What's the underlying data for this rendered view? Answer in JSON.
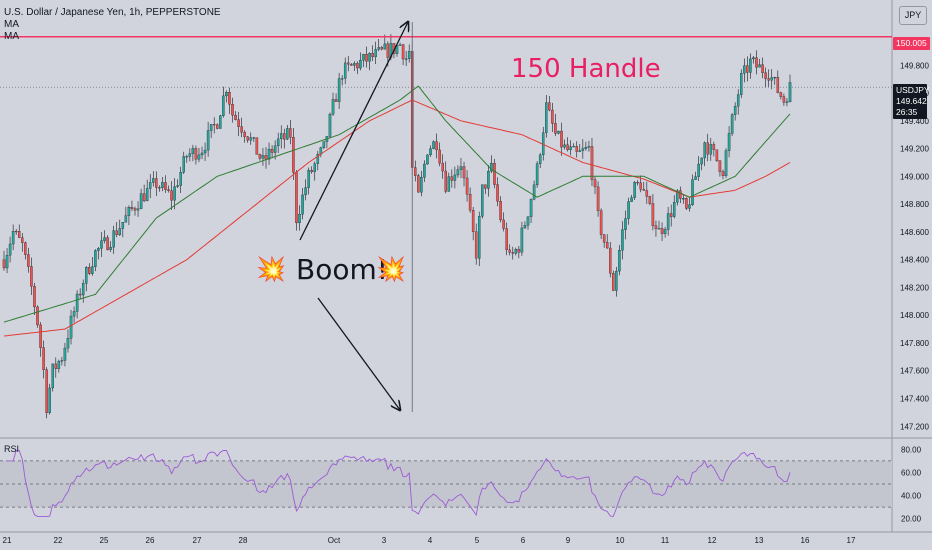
{
  "header": {
    "symbol_line": "U.S. Dollar / Japanese Yen, 1h, PEPPERSTONE",
    "ma1_label": "MA",
    "ma2_label": "MA",
    "currency_badge": "JPY"
  },
  "price_tags": {
    "handle_price": "150.005",
    "symbol": "USDJPY",
    "last_price": "149.642",
    "countdown": "26:35"
  },
  "annotations": {
    "handle_text": "150 Handle",
    "boom_text": "Boom!",
    "burst_glyph": "💥"
  },
  "rsi_pane": {
    "label": "RSI"
  },
  "colors": {
    "background": "#d1d4dc",
    "bull": "#26a69a",
    "bear": "#ef5350",
    "ma_fast": "#2e7d32",
    "ma_slow": "#e53935",
    "handle_line": "#f23660",
    "rsi_line": "#9c5bd6"
  },
  "chart_data": {
    "type": "candlestick",
    "symbol": "USDJPY",
    "timeframe": "1h",
    "y_axis_ticks": [
      147.2,
      147.4,
      147.6,
      147.8,
      148.0,
      148.2,
      148.4,
      148.6,
      148.8,
      149.0,
      149.2,
      149.4,
      149.6,
      149.8
    ],
    "ylim": [
      147.13,
      150.27
    ],
    "x_axis_ticks": [
      "21",
      "22",
      "25",
      "26",
      "27",
      "28",
      "Oct",
      "3",
      "4",
      "5",
      "6",
      "9",
      "10",
      "11",
      "12",
      "13",
      "16",
      "17"
    ],
    "price_path_keypoints": [
      [
        0,
        148.4
      ],
      [
        3,
        148.6
      ],
      [
        6,
        148.5
      ],
      [
        9,
        148.2
      ],
      [
        11,
        147.95
      ],
      [
        13,
        147.6
      ],
      [
        14,
        147.35
      ],
      [
        16,
        147.6
      ],
      [
        19,
        147.7
      ],
      [
        22,
        147.95
      ],
      [
        26,
        148.25
      ],
      [
        30,
        148.45
      ],
      [
        35,
        148.55
      ],
      [
        40,
        148.7
      ],
      [
        45,
        148.85
      ],
      [
        50,
        148.95
      ],
      [
        55,
        148.85
      ],
      [
        60,
        149.15
      ],
      [
        65,
        149.2
      ],
      [
        70,
        149.4
      ],
      [
        73,
        149.65
      ],
      [
        75,
        149.45
      ],
      [
        80,
        149.3
      ],
      [
        85,
        149.1
      ],
      [
        90,
        149.25
      ],
      [
        94,
        149.3
      ],
      [
        96,
        148.7
      ],
      [
        100,
        149.0
      ],
      [
        105,
        149.2
      ],
      [
        108,
        149.5
      ],
      [
        111,
        149.75
      ],
      [
        115,
        149.8
      ],
      [
        120,
        149.85
      ],
      [
        125,
        149.9
      ],
      [
        128,
        149.92
      ],
      [
        130,
        149.95
      ],
      [
        132,
        149.85
      ],
      [
        133,
        149.9
      ],
      [
        134,
        149.05
      ],
      [
        136,
        148.85
      ],
      [
        139,
        149.2
      ],
      [
        142,
        149.25
      ],
      [
        145,
        148.95
      ],
      [
        150,
        149.1
      ],
      [
        153,
        148.7
      ],
      [
        155,
        148.45
      ],
      [
        157,
        148.9
      ],
      [
        160,
        149.05
      ],
      [
        163,
        148.7
      ],
      [
        166,
        148.4
      ],
      [
        169,
        148.5
      ],
      [
        172,
        148.75
      ],
      [
        175,
        149.05
      ],
      [
        178,
        149.5
      ],
      [
        181,
        149.3
      ],
      [
        184,
        149.2
      ],
      [
        188,
        149.15
      ],
      [
        192,
        149.2
      ],
      [
        195,
        148.7
      ],
      [
        198,
        148.45
      ],
      [
        200,
        148.2
      ],
      [
        203,
        148.6
      ],
      [
        206,
        148.9
      ],
      [
        209,
        148.95
      ],
      [
        212,
        148.75
      ],
      [
        215,
        148.6
      ],
      [
        218,
        148.7
      ],
      [
        221,
        148.85
      ],
      [
        224,
        148.75
      ],
      [
        227,
        149.0
      ],
      [
        230,
        149.25
      ],
      [
        233,
        149.15
      ],
      [
        236,
        149.05
      ],
      [
        239,
        149.4
      ],
      [
        242,
        149.7
      ],
      [
        245,
        149.82
      ],
      [
        248,
        149.78
      ],
      [
        251,
        149.75
      ],
      [
        254,
        149.62
      ],
      [
        256,
        149.55
      ],
      [
        258,
        149.64
      ]
    ],
    "ma_fast_keypoints": [
      [
        0,
        147.95
      ],
      [
        15,
        148.05
      ],
      [
        30,
        148.15
      ],
      [
        50,
        148.7
      ],
      [
        70,
        149.0
      ],
      [
        90,
        149.15
      ],
      [
        110,
        149.3
      ],
      [
        130,
        149.55
      ],
      [
        136,
        149.65
      ],
      [
        145,
        149.4
      ],
      [
        160,
        149.05
      ],
      [
        175,
        148.85
      ],
      [
        190,
        149.0
      ],
      [
        210,
        149.0
      ],
      [
        225,
        148.85
      ],
      [
        240,
        149.0
      ],
      [
        250,
        149.25
      ],
      [
        258,
        149.45
      ]
    ],
    "ma_slow_keypoints": [
      [
        0,
        147.85
      ],
      [
        20,
        147.9
      ],
      [
        40,
        148.15
      ],
      [
        60,
        148.4
      ],
      [
        80,
        148.75
      ],
      [
        100,
        149.1
      ],
      [
        120,
        149.4
      ],
      [
        134,
        149.55
      ],
      [
        150,
        149.4
      ],
      [
        170,
        149.3
      ],
      [
        190,
        149.1
      ],
      [
        210,
        148.98
      ],
      [
        225,
        148.85
      ],
      [
        240,
        148.9
      ],
      [
        250,
        149.0
      ],
      [
        258,
        149.1
      ]
    ],
    "rsi": {
      "y_axis_ticks": [
        20,
        40,
        60,
        80
      ],
      "ylim": [
        18,
        82
      ],
      "levels": [
        30,
        50,
        70
      ]
    },
    "horizontal_lines": [
      {
        "price": 150.005,
        "label": "150.005"
      }
    ],
    "last_price": 149.642,
    "vertical_marker_at_candle": 134
  }
}
